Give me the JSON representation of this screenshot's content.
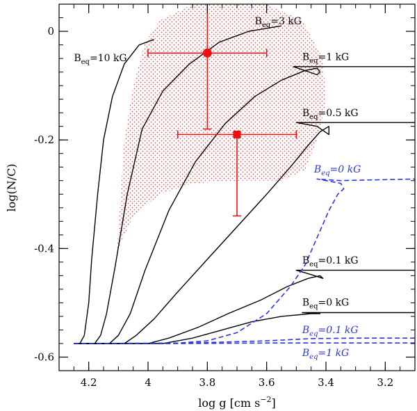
{
  "chart_data": {
    "type": "line",
    "xlabel": "log g [cm s",
    "xlabel_exp": "−2",
    "xlabel_close": "]",
    "ylabel": "log(N/C)",
    "xlim": [
      4.3,
      3.1
    ],
    "ylim": [
      -0.625,
      0.05
    ],
    "x_ticks": [
      {
        "v": 4.2,
        "label": "4.2"
      },
      {
        "v": 4.0,
        "label": "4"
      },
      {
        "v": 3.8,
        "label": "3.8"
      },
      {
        "v": 3.6,
        "label": "3.6"
      },
      {
        "v": 3.4,
        "label": "3.4"
      },
      {
        "v": 3.2,
        "label": "3.2"
      }
    ],
    "y_ticks": [
      {
        "v": 0,
        "label": "0"
      },
      {
        "v": -0.2,
        "label": "-0.2"
      },
      {
        "v": -0.4,
        "label": "-0.4"
      },
      {
        "v": -0.6,
        "label": "-0.6"
      }
    ],
    "observations": [
      {
        "name": "obs-circle",
        "marker": "circle",
        "x": 3.8,
        "y": -0.04,
        "x_range": [
          4.0,
          3.6
        ],
        "y_range": [
          -0.18,
          0.05
        ]
      },
      {
        "name": "obs-square",
        "marker": "square",
        "x": 3.7,
        "y": -0.19,
        "x_range": [
          3.9,
          3.5
        ],
        "y_range": [
          -0.34,
          -0.19
        ]
      }
    ],
    "uncertainty_region": [
      [
        4.11,
        -0.45
      ],
      [
        4.08,
        -0.2
      ],
      [
        4.05,
        -0.1
      ],
      [
        4.01,
        -0.02
      ],
      [
        3.96,
        0.02
      ],
      [
        3.85,
        0.05
      ],
      [
        3.6,
        0.05
      ],
      [
        3.48,
        0.02
      ],
      [
        3.41,
        -0.05
      ],
      [
        3.4,
        -0.13
      ],
      [
        3.43,
        -0.2
      ],
      [
        3.47,
        -0.255
      ],
      [
        3.55,
        -0.275
      ],
      [
        3.7,
        -0.275
      ],
      [
        3.85,
        -0.28
      ],
      [
        3.96,
        -0.3
      ],
      [
        4.05,
        -0.34
      ],
      [
        4.1,
        -0.4
      ]
    ],
    "series": [
      {
        "name": "Beq=10 kG",
        "color": "#000000",
        "dash": false,
        "points": [
          [
            4.25,
            -0.575
          ],
          [
            4.23,
            -0.575
          ],
          [
            4.215,
            -0.56
          ],
          [
            4.2,
            -0.5
          ],
          [
            4.19,
            -0.42
          ],
          [
            4.17,
            -0.3
          ],
          [
            4.15,
            -0.2
          ],
          [
            4.12,
            -0.12
          ],
          [
            4.08,
            -0.06
          ],
          [
            4.03,
            -0.025
          ],
          [
            3.98,
            -0.015
          ]
        ]
      },
      {
        "name": "Beq=3 kG",
        "color": "#000000",
        "dash": false,
        "points": [
          [
            4.25,
            -0.575
          ],
          [
            4.18,
            -0.575
          ],
          [
            4.16,
            -0.56
          ],
          [
            4.14,
            -0.52
          ],
          [
            4.11,
            -0.43
          ],
          [
            4.07,
            -0.3
          ],
          [
            4.02,
            -0.18
          ],
          [
            3.95,
            -0.11
          ],
          [
            3.86,
            -0.06
          ],
          [
            3.76,
            -0.02
          ],
          [
            3.66,
            0.0
          ],
          [
            3.55,
            0.01
          ]
        ]
      },
      {
        "name": "Beq=1 kG",
        "color": "#000000",
        "dash": false,
        "points": [
          [
            4.25,
            -0.575
          ],
          [
            4.13,
            -0.575
          ],
          [
            4.1,
            -0.56
          ],
          [
            4.06,
            -0.52
          ],
          [
            4.01,
            -0.44
          ],
          [
            3.93,
            -0.33
          ],
          [
            3.84,
            -0.24
          ],
          [
            3.74,
            -0.17
          ],
          [
            3.64,
            -0.12
          ],
          [
            3.55,
            -0.09
          ],
          [
            3.47,
            -0.072
          ],
          [
            3.43,
            -0.068
          ],
          [
            3.42,
            -0.075
          ],
          [
            3.43,
            -0.08
          ],
          [
            3.51,
            -0.065
          ],
          [
            3.1,
            -0.065
          ]
        ]
      },
      {
        "name": "Beq=0.5 kG",
        "color": "#000000",
        "dash": false,
        "points": [
          [
            4.25,
            -0.575
          ],
          [
            4.08,
            -0.575
          ],
          [
            4.04,
            -0.56
          ],
          [
            3.98,
            -0.53
          ],
          [
            3.9,
            -0.48
          ],
          [
            3.8,
            -0.42
          ],
          [
            3.7,
            -0.36
          ],
          [
            3.6,
            -0.3
          ],
          [
            3.52,
            -0.25
          ],
          [
            3.46,
            -0.21
          ],
          [
            3.42,
            -0.185
          ],
          [
            3.39,
            -0.175
          ],
          [
            3.39,
            -0.19
          ],
          [
            3.43,
            -0.175
          ],
          [
            3.5,
            -0.168
          ],
          [
            3.1,
            -0.168
          ]
        ]
      },
      {
        "name": "Beq=0.1 kG",
        "color": "#000000",
        "dash": false,
        "points": [
          [
            4.25,
            -0.575
          ],
          [
            4.0,
            -0.575
          ],
          [
            3.93,
            -0.565
          ],
          [
            3.83,
            -0.545
          ],
          [
            3.73,
            -0.52
          ],
          [
            3.62,
            -0.495
          ],
          [
            3.53,
            -0.47
          ],
          [
            3.46,
            -0.455
          ],
          [
            3.42,
            -0.45
          ],
          [
            3.41,
            -0.455
          ],
          [
            3.45,
            -0.448
          ],
          [
            3.5,
            -0.44
          ],
          [
            3.1,
            -0.44
          ]
        ]
      },
      {
        "name": "Beq=0 kG",
        "color": "#000000",
        "dash": false,
        "points": [
          [
            4.25,
            -0.575
          ],
          [
            3.95,
            -0.575
          ],
          [
            3.85,
            -0.565
          ],
          [
            3.75,
            -0.55
          ],
          [
            3.65,
            -0.535
          ],
          [
            3.55,
            -0.525
          ],
          [
            3.45,
            -0.52
          ],
          [
            3.42,
            -0.52
          ],
          [
            3.48,
            -0.518
          ],
          [
            3.1,
            -0.518
          ]
        ]
      },
      {
        "name": "Beq=0 kG (blue)",
        "color": "#2a35e0",
        "dash": true,
        "points": [
          [
            4.25,
            -0.575
          ],
          [
            3.92,
            -0.575
          ],
          [
            3.8,
            -0.57
          ],
          [
            3.7,
            -0.555
          ],
          [
            3.6,
            -0.52
          ],
          [
            3.52,
            -0.47
          ],
          [
            3.47,
            -0.43
          ],
          [
            3.43,
            -0.38
          ],
          [
            3.39,
            -0.33
          ],
          [
            3.36,
            -0.3
          ],
          [
            3.34,
            -0.29
          ],
          [
            3.35,
            -0.28
          ],
          [
            3.4,
            -0.275
          ],
          [
            3.43,
            -0.272
          ],
          [
            3.35,
            -0.275
          ],
          [
            3.1,
            -0.272
          ]
        ]
      },
      {
        "name": "Beq=0.1 kG (blue)",
        "color": "#2a35e0",
        "dash": true,
        "points": [
          [
            4.25,
            -0.575
          ],
          [
            3.85,
            -0.574
          ],
          [
            3.6,
            -0.57
          ],
          [
            3.45,
            -0.566
          ],
          [
            3.3,
            -0.565
          ],
          [
            3.1,
            -0.565
          ]
        ]
      },
      {
        "name": "Beq=1 kG (blue)",
        "color": "#2a35e0",
        "dash": true,
        "points": [
          [
            4.25,
            -0.575
          ],
          [
            3.9,
            -0.575
          ],
          [
            3.6,
            -0.574
          ],
          [
            3.35,
            -0.574
          ],
          [
            3.1,
            -0.574
          ]
        ]
      }
    ],
    "annotations": [
      {
        "name": "label-beq-10kg",
        "prefix": "B",
        "sub": "eq",
        "suffix": "=10 kG",
        "italic": false,
        "color": "#000000",
        "x": 4.25,
        "y": -0.055
      },
      {
        "name": "label-beq-3kg",
        "prefix": "B",
        "sub": "eq",
        "suffix": "=3 kG",
        "italic": false,
        "color": "#000000",
        "x": 3.64,
        "y": 0.013
      },
      {
        "name": "label-beq-1kg",
        "prefix": "B",
        "sub": "eq",
        "suffix": "=1 kG",
        "italic": false,
        "color": "#000000",
        "x": 3.48,
        "y": -0.053
      },
      {
        "name": "label-beq-05kg",
        "prefix": "B",
        "sub": "eq",
        "suffix": "=0.5 kG",
        "italic": false,
        "color": "#000000",
        "x": 3.48,
        "y": -0.156
      },
      {
        "name": "label-beq-0kg-blue",
        "prefix": "B",
        "sub": "eq",
        "suffix": "=0 kG",
        "italic": true,
        "color": "#2a35e0",
        "x": 3.44,
        "y": -0.26
      },
      {
        "name": "label-beq-01kg",
        "prefix": "B",
        "sub": "eq",
        "suffix": "=0.1 kG",
        "italic": false,
        "color": "#000000",
        "x": 3.48,
        "y": -0.428
      },
      {
        "name": "label-beq-0kg",
        "prefix": "B",
        "sub": "eq",
        "suffix": "=0 kG",
        "italic": false,
        "color": "#000000",
        "x": 3.48,
        "y": -0.505
      },
      {
        "name": "label-beq-01kg-blue",
        "prefix": "B",
        "sub": "eq",
        "suffix": "=0.1 kG",
        "italic": true,
        "color": "#2a35e0",
        "x": 3.48,
        "y": -0.556
      },
      {
        "name": "label-beq-1kg-blue",
        "prefix": "B",
        "sub": "eq",
        "suffix": "=1 kG",
        "italic": true,
        "color": "#2a35e0",
        "x": 3.48,
        "y": -0.598
      }
    ],
    "colors": {
      "observation": "#ee1111",
      "region": "#e06060",
      "blue": "#2a35e0"
    }
  }
}
